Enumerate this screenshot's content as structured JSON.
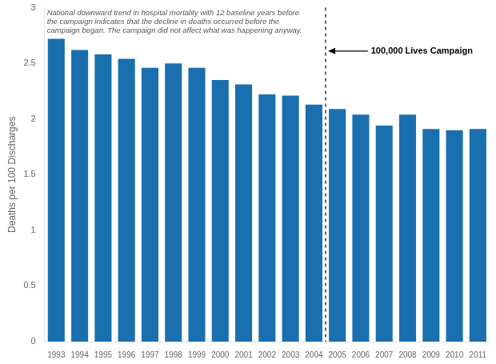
{
  "chart_data": {
    "type": "bar",
    "categories": [
      "1993",
      "1994",
      "1995",
      "1996",
      "1997",
      "1998",
      "1999",
      "2000",
      "2001",
      "2002",
      "2003",
      "2004",
      "2005",
      "2006",
      "2007",
      "2008",
      "2009",
      "2010",
      "2011"
    ],
    "values": [
      2.72,
      2.62,
      2.58,
      2.54,
      2.46,
      2.5,
      2.46,
      2.35,
      2.31,
      2.22,
      2.21,
      2.13,
      2.09,
      2.04,
      1.94,
      2.04,
      1.91,
      1.9,
      1.91
    ],
    "color": "#1a6faf",
    "ylabel": "Deaths per 100 Discharges",
    "ylim": [
      0,
      3.0
    ],
    "yticks": [
      0,
      0.5,
      1.0,
      1.5,
      2.0,
      2.5,
      3.0
    ],
    "grid": false,
    "annotations": [
      {
        "text": "National downward trend in hospital mortality with 12 baseline years before\nthe campaign indicates that the decline in deaths occurred before the\ncampaign began. The campaign did not affect what was happening anyway."
      },
      {
        "text": "100,000 Lives Campaign",
        "after": "2004"
      }
    ]
  }
}
